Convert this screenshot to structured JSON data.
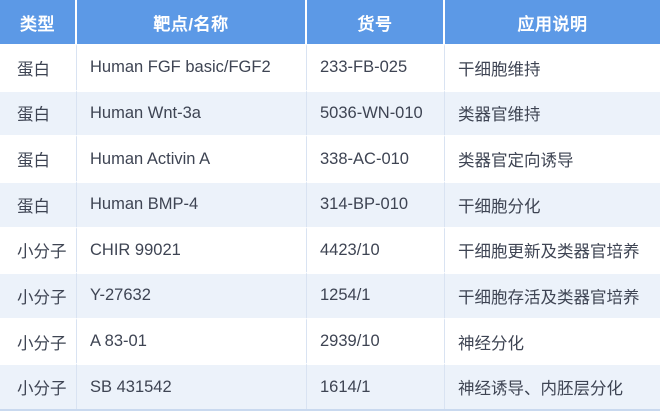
{
  "table": {
    "columns": [
      {
        "label": "类型"
      },
      {
        "label": "靶点/名称"
      },
      {
        "label": "货号"
      },
      {
        "label": "应用说明"
      }
    ],
    "rows": [
      {
        "type": "蛋白",
        "name": "Human FGF basic/FGF2",
        "catalog": "233-FB-025",
        "application": "干细胞维持"
      },
      {
        "type": "蛋白",
        "name": "Human Wnt-3a",
        "catalog": "5036-WN-010",
        "application": "类器官维持"
      },
      {
        "type": "蛋白",
        "name": "Human Activin A",
        "catalog": "338-AC-010",
        "application": "类器官定向诱导"
      },
      {
        "type": "蛋白",
        "name": "Human BMP-4",
        "catalog": "314-BP-010",
        "application": "干细胞分化"
      },
      {
        "type": "小分子",
        "name": "CHIR 99021",
        "catalog": "4423/10",
        "application": "干细胞更新及类器官培养"
      },
      {
        "type": "小分子",
        "name": "Y-27632",
        "catalog": "1254/1",
        "application": "干细胞存活及类器官培养"
      },
      {
        "type": "小分子",
        "name": "A 83-01",
        "catalog": "2939/10",
        "application": "神经分化"
      },
      {
        "type": "小分子",
        "name": "SB 431542",
        "catalog": "1614/1",
        "application": "神经诱导、内胚层分化"
      }
    ],
    "colors": {
      "header_bg": "#5c99e6",
      "header_text": "#ffffff",
      "row_bg": "#ffffff",
      "row_alt_bg": "#ecf2fa",
      "body_text": "#3e4453",
      "column_divider": "#d9e3f2",
      "row_divider": "#ffffff",
      "bottom_edge": "#c9d9ef"
    }
  }
}
